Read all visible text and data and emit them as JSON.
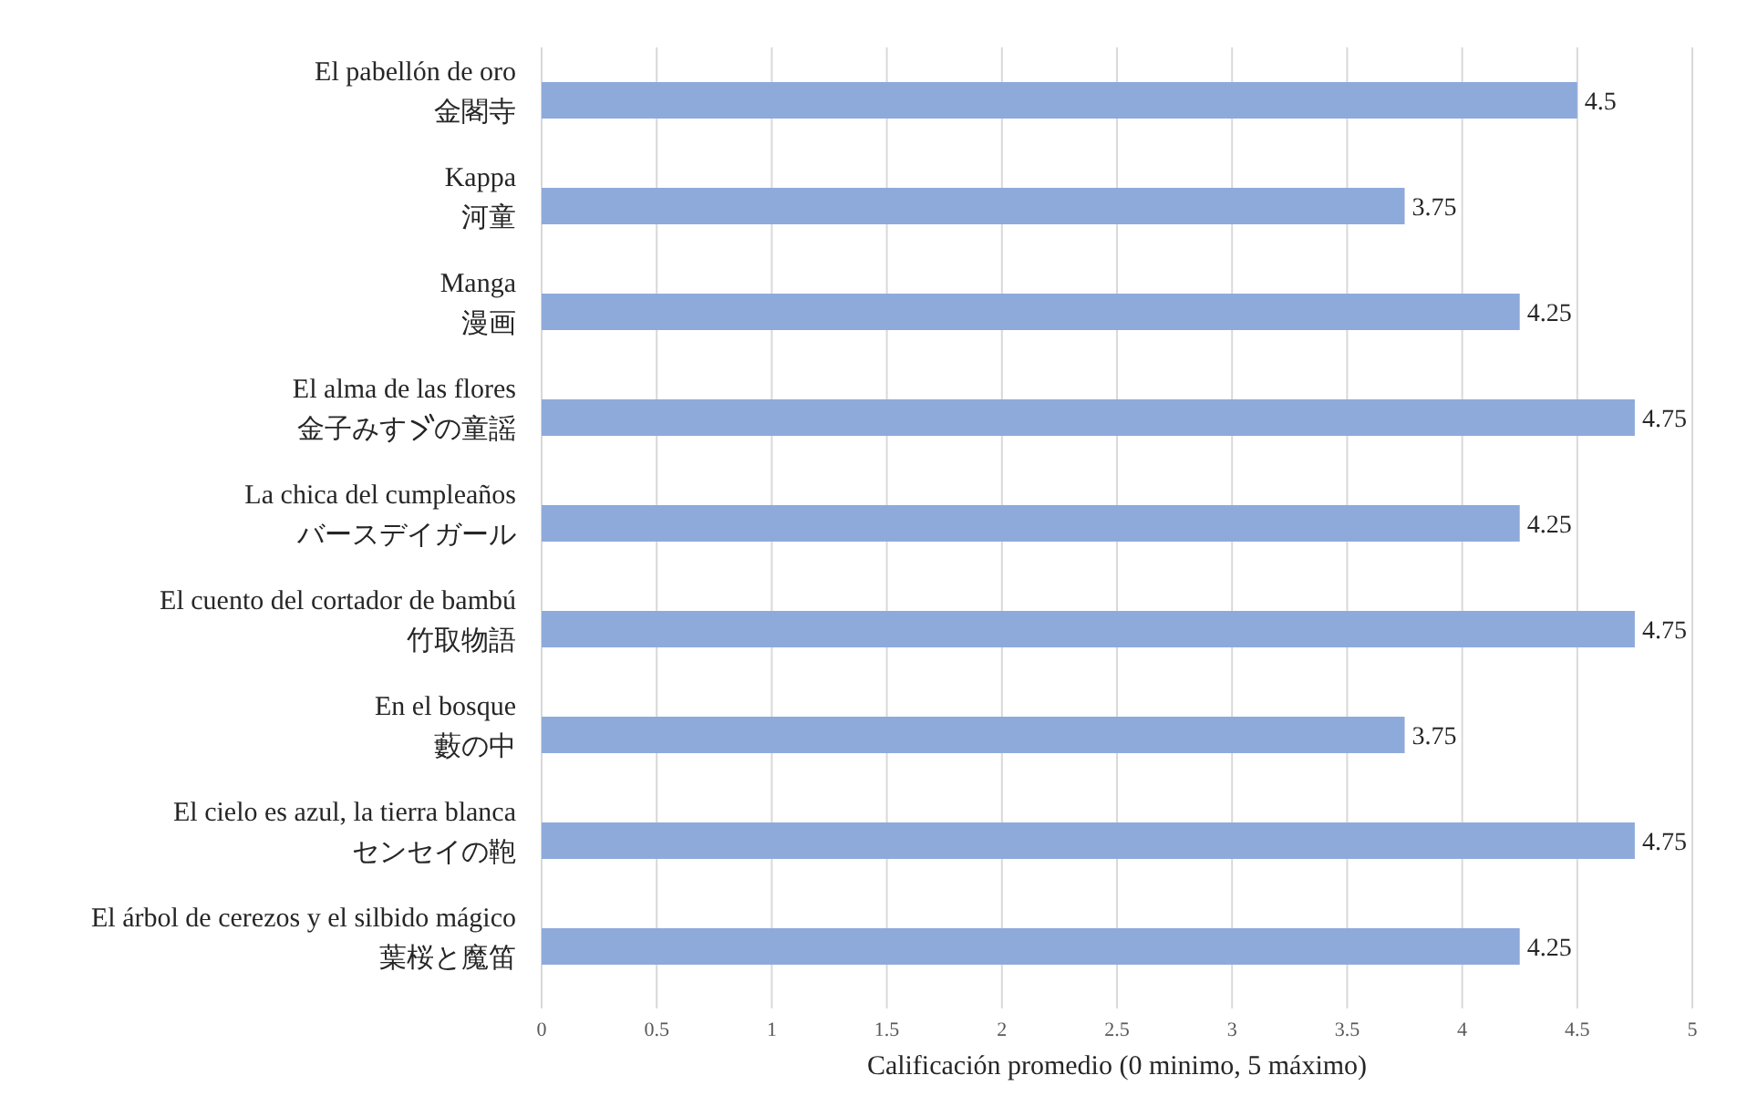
{
  "chart_data": {
    "type": "bar",
    "orientation": "horizontal",
    "xlabel": "Calificación promedio (0 minimo, 5 máximo)",
    "categories": [
      "El pabellón de oro\n金閣寺",
      "Kappa\n河童",
      "Manga\n漫画",
      "El alma de las flores\n金子みすゞの童謡",
      "La chica del cumpleaños\nバースデイガール",
      "El cuento del cortador de bambú\n竹取物語",
      "En el bosque\n藪の中",
      "El cielo es azul, la tierra blanca\nセンセイの鞄",
      "El árbol de cerezos y el silbido mágico\n葉桜と魔笛"
    ],
    "values": [
      4.5,
      3.75,
      4.25,
      4.75,
      4.25,
      4.75,
      3.75,
      4.75,
      4.25
    ],
    "color": "#8eaadb",
    "xlim": [
      0,
      5
    ],
    "xticks": [
      0,
      0.5,
      1,
      1.5,
      2,
      2.5,
      3,
      3.5,
      4,
      4.5,
      5
    ],
    "grid": "x",
    "data_labels": true
  }
}
